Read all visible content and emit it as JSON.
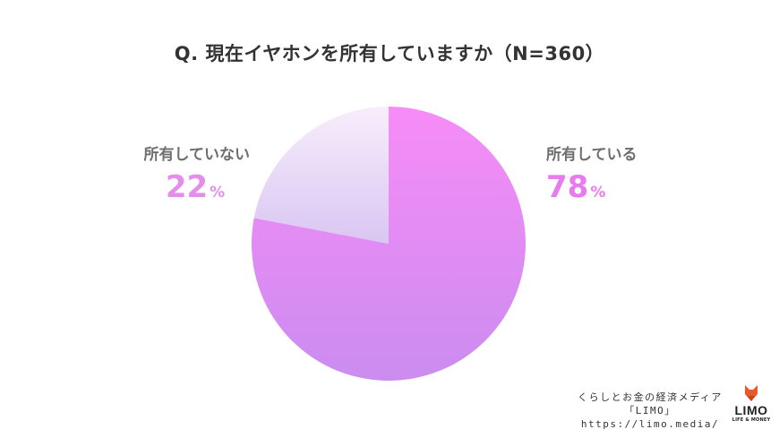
{
  "title": "Q. 現在イヤホンを所有していますか（N=360）",
  "chart_data": {
    "type": "pie",
    "title": "Q. 現在イヤホンを所有していますか（N=360）",
    "slices": [
      {
        "label": "所有している",
        "value": 78,
        "display": "78",
        "unit": "%",
        "color_top": "#f78cf7",
        "color_bottom": "#cb8cf0"
      },
      {
        "label": "所有していない",
        "value": 22,
        "display": "22",
        "unit": "%",
        "color_top": "#f7eefb",
        "color_bottom": "#d9c6f2"
      }
    ],
    "start_angle": "12 o'clock",
    "direction": "clockwise"
  },
  "footer": {
    "line1": "くらしとお金の経済メディア",
    "line2": "「LIMO」",
    "url": "https://limo.media/"
  },
  "logo": {
    "text": "LIMO",
    "tagline": "LIFE & MONEY"
  }
}
